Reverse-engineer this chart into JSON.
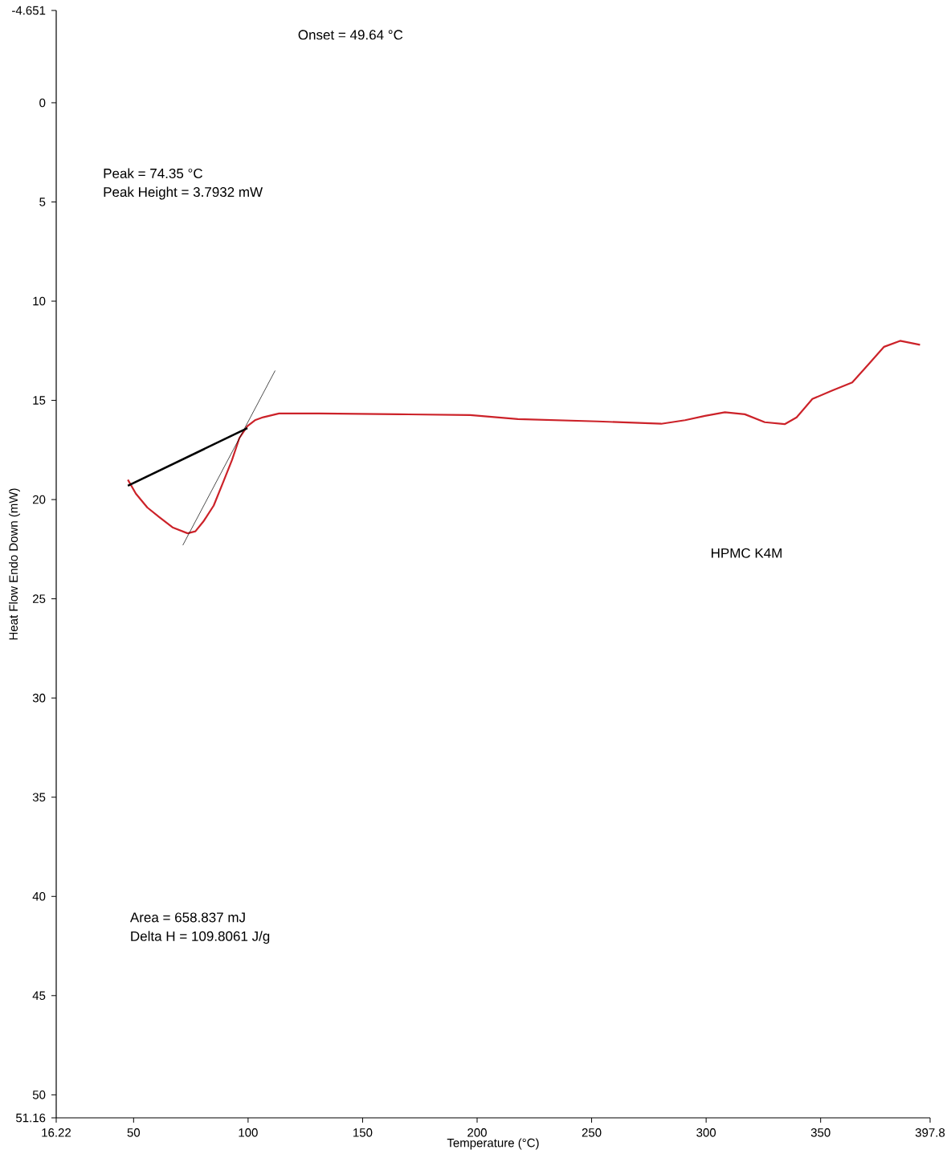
{
  "chart_data": {
    "type": "line",
    "xlabel": "Temperature (°C)",
    "ylabel": "Heat Flow Endo Down (mW)",
    "xlim": [
      16.22,
      397.8
    ],
    "xticks": [
      16.22,
      50,
      100,
      150,
      200,
      250,
      300,
      350,
      397.8
    ],
    "ylim": [
      51.16,
      -4.651
    ],
    "yticks": [
      -4.651,
      0,
      5,
      10,
      15,
      20,
      25,
      30,
      35,
      40,
      45,
      50,
      51.16
    ],
    "series": [
      {
        "color": "#cc2229",
        "x": [
          47.5,
          51.0,
          56,
          61.4,
          67,
          73.6,
          77,
          80.5,
          85,
          89.2,
          93,
          96.2,
          99.7,
          103,
          106.6,
          113.5,
          131,
          165.7,
          197,
          217.8,
          252.6,
          280.4,
          290.8,
          299.5,
          308.2,
          316.9,
          325.6,
          334.3,
          339.5,
          346.4,
          355.1,
          363.8,
          370.8,
          377.7,
          384.7,
          393.4
        ],
        "values": [
          19.0,
          19.7,
          20.4,
          20.9,
          21.4,
          21.7,
          21.6,
          21.1,
          20.3,
          19.1,
          18.0,
          16.9,
          16.3,
          16.0,
          15.85,
          15.66,
          15.66,
          15.7,
          15.74,
          15.94,
          16.06,
          16.18,
          16.0,
          15.78,
          15.6,
          15.7,
          16.1,
          16.2,
          15.86,
          14.93,
          14.5,
          14.1,
          13.2,
          12.3,
          12.0,
          12.2
        ]
      },
      {
        "color": "#000000",
        "x": [
          47.5,
          99.7
        ],
        "values": [
          19.3,
          16.4
        ]
      },
      {
        "color": "#000000",
        "x": [
          71.5,
          111.8
        ],
        "values": [
          22.3,
          13.5
        ]
      }
    ],
    "annotations": [
      "Onset = 49.64 °C",
      "Peak = 74.35 °C",
      "Peak Height = 3.7932 mW",
      "Area = 658.837 mJ",
      "Delta H = 109.8061 J/g",
      "HPMC K4M"
    ]
  }
}
